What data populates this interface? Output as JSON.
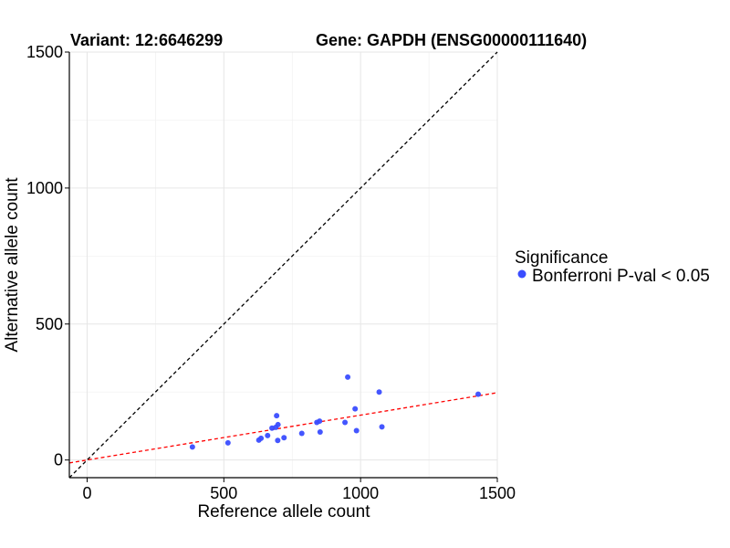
{
  "chart_data": {
    "type": "scatter",
    "title_left": "Variant: 12:6646299",
    "title_right": "Gene: GAPDH (ENSG00000111640)",
    "xlabel": "Reference allele count",
    "ylabel": "Alternative allele count",
    "xlim": [
      -65,
      1500
    ],
    "ylim": [
      -65,
      1500
    ],
    "x_ticks": [
      0,
      500,
      1000,
      1500
    ],
    "y_ticks": [
      0,
      500,
      1000,
      1500
    ],
    "x_tick_labels": [
      "0",
      "500",
      "1000",
      "1500"
    ],
    "y_tick_labels": [
      "0",
      "500",
      "1000",
      "1500"
    ],
    "grid": true,
    "legend": {
      "title": "Significance",
      "position": "right",
      "entries": [
        {
          "label": "Bonferroni P-val < 0.05",
          "color": "#3a4dff"
        }
      ]
    },
    "series": [
      {
        "name": "Bonferroni P-val < 0.05",
        "color": "#3a4dff",
        "points": [
          [
            385,
            48
          ],
          [
            515,
            63
          ],
          [
            628,
            73
          ],
          [
            636,
            80
          ],
          [
            660,
            90
          ],
          [
            676,
            117
          ],
          [
            690,
            120
          ],
          [
            693,
            163
          ],
          [
            697,
            72
          ],
          [
            698,
            130
          ],
          [
            720,
            82
          ],
          [
            785,
            98
          ],
          [
            840,
            138
          ],
          [
            850,
            143
          ],
          [
            852,
            103
          ],
          [
            943,
            138
          ],
          [
            953,
            305
          ],
          [
            980,
            188
          ],
          [
            985,
            108
          ],
          [
            1068,
            250
          ],
          [
            1078,
            122
          ],
          [
            1430,
            242
          ]
        ]
      }
    ],
    "reference_lines": [
      {
        "style": "dashed",
        "color": "#000000",
        "slope": 1,
        "intercept": 0
      },
      {
        "style": "dashed",
        "color": "#ff0000",
        "slope": 0.165,
        "intercept": 0
      }
    ]
  }
}
